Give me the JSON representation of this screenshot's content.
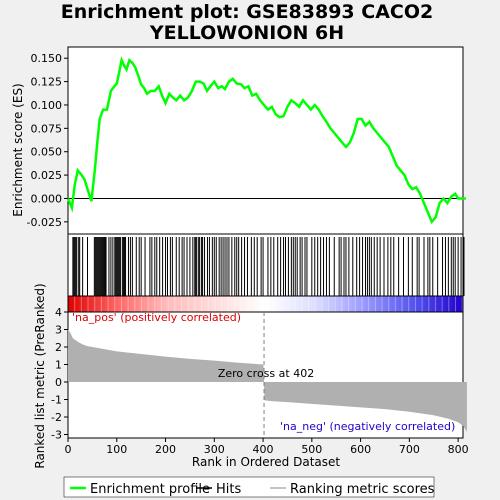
{
  "chart_data": {
    "type": "line",
    "title_line1": "Enrichment plot: GSE83893 CACO2",
    "title_line2": "YELLOWONION 6H",
    "top_panel": {
      "ylabel": "Enrichment score (ES)",
      "yticks": [
        "0.150",
        "0.125",
        "0.100",
        "0.075",
        "0.050",
        "0.025",
        "0.000",
        "-0.025"
      ],
      "ytick_values": [
        0.15,
        0.125,
        0.1,
        0.075,
        0.05,
        0.025,
        0.0,
        -0.025
      ],
      "ylim": [
        -0.038,
        0.162
      ],
      "xlim": [
        0,
        810
      ],
      "series": [
        {
          "name": "Enrichment profile",
          "color": "#00ff00",
          "x": [
            0,
            8,
            14,
            20,
            28,
            34,
            40,
            48,
            55,
            60,
            65,
            72,
            80,
            88,
            95,
            100,
            105,
            110,
            115,
            120,
            126,
            132,
            138,
            145,
            150,
            156,
            162,
            170,
            178,
            186,
            193,
            200,
            208,
            215,
            222,
            230,
            238,
            246,
            254,
            262,
            270,
            278,
            285,
            292,
            300,
            308,
            315,
            322,
            330,
            338,
            346,
            355,
            362,
            370,
            378,
            386,
            394,
            402,
            410,
            418,
            426,
            434,
            442,
            450,
            458,
            466,
            474,
            482,
            490,
            498,
            506,
            514,
            522,
            530,
            538,
            546,
            554,
            562,
            570,
            578,
            586,
            594,
            602,
            610,
            618,
            626,
            634,
            642,
            650,
            658,
            666,
            674,
            682,
            690,
            698,
            706,
            714,
            722,
            730,
            738,
            746,
            754,
            762,
            770,
            778,
            786,
            794,
            800,
            806,
            812,
            816
          ],
          "y": [
            0.0,
            -0.01,
            0.015,
            0.03,
            0.025,
            0.02,
            0.01,
            -0.003,
            0.03,
            0.06,
            0.085,
            0.095,
            0.095,
            0.115,
            0.12,
            0.123,
            0.135,
            0.148,
            0.142,
            0.138,
            0.148,
            0.145,
            0.14,
            0.13,
            0.122,
            0.118,
            0.112,
            0.115,
            0.115,
            0.12,
            0.11,
            0.102,
            0.112,
            0.108,
            0.105,
            0.11,
            0.105,
            0.108,
            0.115,
            0.125,
            0.125,
            0.123,
            0.115,
            0.12,
            0.125,
            0.118,
            0.12,
            0.117,
            0.125,
            0.128,
            0.123,
            0.122,
            0.118,
            0.12,
            0.11,
            0.112,
            0.105,
            0.1,
            0.095,
            0.098,
            0.09,
            0.087,
            0.088,
            0.098,
            0.105,
            0.102,
            0.098,
            0.105,
            0.1,
            0.095,
            0.1,
            0.095,
            0.088,
            0.082,
            0.075,
            0.07,
            0.065,
            0.06,
            0.055,
            0.06,
            0.07,
            0.085,
            0.085,
            0.078,
            0.082,
            0.075,
            0.07,
            0.065,
            0.06,
            0.055,
            0.045,
            0.035,
            0.03,
            0.025,
            0.015,
            0.01,
            0.012,
            0.005,
            -0.005,
            -0.015,
            -0.025,
            -0.02,
            -0.005,
            0.0,
            -0.005,
            0.002,
            0.005,
            0.0,
            0.0,
            0.0,
            0.0
          ]
        }
      ]
    },
    "hits_panel": {
      "legend_name": "Hits",
      "positions": [
        10,
        12,
        14,
        16,
        18,
        22,
        24,
        30,
        40,
        54,
        56,
        58,
        60,
        62,
        64,
        66,
        68,
        70,
        72,
        74,
        76,
        78,
        84,
        88,
        92,
        96,
        98,
        100,
        102,
        104,
        106,
        108,
        112,
        114,
        116,
        118,
        124,
        128,
        132,
        140,
        146,
        150,
        158,
        168,
        172,
        178,
        182,
        188,
        194,
        200,
        204,
        210,
        214,
        222,
        228,
        234,
        238,
        244,
        250,
        256,
        260,
        262,
        264,
        268,
        270,
        274,
        276,
        280,
        286,
        290,
        296,
        300,
        304,
        310,
        314,
        318,
        322,
        326,
        330,
        336,
        342,
        346,
        350,
        356,
        362,
        368,
        376,
        382,
        388,
        396,
        400,
        410,
        416,
        422,
        430,
        436,
        442,
        446,
        452,
        458,
        462,
        466,
        470,
        476,
        480,
        486,
        490,
        500,
        506,
        512,
        518,
        524,
        530,
        536,
        546,
        556,
        560,
        566,
        570,
        576,
        584,
        592,
        598,
        604,
        610,
        614,
        618,
        622,
        628,
        634,
        640,
        648,
        656,
        662,
        668,
        678,
        688,
        698,
        706,
        716,
        720,
        730,
        738,
        742,
        748,
        758,
        768,
        774,
        780,
        786,
        790,
        794,
        800,
        806,
        812
      ],
      "heatmap": {
        "colors": [
          "#dd0000",
          "#ff6666",
          "#ffbbbb",
          "#ffdddd",
          "#ffffff",
          "#ddddff",
          "#9999ff",
          "#5555ee",
          "#2200cc"
        ]
      }
    },
    "bottom_panel": {
      "ylabel": "Ranked list metric (PreRanked)",
      "xlabel": "Rank in Ordered Dataset",
      "yticks": [
        "4",
        "3",
        "2",
        "1",
        "0",
        "-1",
        "-2",
        "-3"
      ],
      "ytick_values": [
        4,
        3,
        2,
        1,
        0,
        -1,
        -2,
        -3
      ],
      "ylim": [
        -3.2,
        4.0
      ],
      "xticks": [
        "0",
        "100",
        "200",
        "300",
        "400",
        "500",
        "600",
        "700",
        "800"
      ],
      "xtick_values": [
        0,
        100,
        200,
        300,
        400,
        500,
        600,
        700,
        800
      ],
      "zero_cross": 402,
      "zero_cross_label": "Zero cross at 402",
      "pos_label": "'na_pos' (positively correlated)",
      "neg_label": "'na_neg' (negatively correlated)",
      "metric_x": [
        0,
        5,
        10,
        20,
        30,
        40,
        60,
        80,
        100,
        150,
        200,
        250,
        300,
        350,
        400,
        401,
        402,
        403,
        420,
        450,
        500,
        550,
        600,
        650,
        700,
        750,
        780,
        800,
        810,
        815,
        818
      ],
      "metric_y": [
        3.0,
        2.8,
        2.5,
        2.3,
        2.15,
        2.05,
        1.95,
        1.85,
        1.75,
        1.6,
        1.45,
        1.32,
        1.22,
        1.1,
        1.0,
        0.9,
        0,
        -1.05,
        -1.1,
        -1.15,
        -1.25,
        -1.35,
        -1.45,
        -1.55,
        -1.7,
        -1.9,
        -2.1,
        -2.3,
        -2.5,
        -2.7,
        -2.85
      ],
      "color": "#b0b0b0"
    },
    "legend": [
      {
        "label": "Enrichment profile",
        "color": "#00ff00"
      },
      {
        "label": "Hits",
        "color": "#000000"
      },
      {
        "label": "Ranking metric scores",
        "color": "#b0b0b0"
      }
    ]
  }
}
